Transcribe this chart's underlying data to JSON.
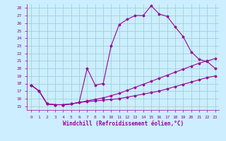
{
  "xlabel": "Windchill (Refroidissement éolien,°C)",
  "background_color": "#cceeff",
  "line_color": "#990099",
  "grid_color": "#99cccc",
  "xlim": [
    -0.5,
    23.5
  ],
  "ylim": [
    14.5,
    28.5
  ],
  "yticks": [
    15,
    16,
    17,
    18,
    19,
    20,
    21,
    22,
    23,
    24,
    25,
    26,
    27,
    28
  ],
  "xticks": [
    0,
    1,
    2,
    3,
    4,
    5,
    6,
    7,
    8,
    9,
    10,
    11,
    12,
    13,
    14,
    15,
    16,
    17,
    18,
    19,
    20,
    21,
    22,
    23
  ],
  "line1_x": [
    0,
    1,
    2,
    3,
    4,
    5,
    6,
    7,
    8,
    9,
    10,
    11,
    12,
    13,
    14,
    15,
    16,
    17,
    18,
    19,
    20,
    21,
    22,
    23
  ],
  "line1_y": [
    17.8,
    17.0,
    15.3,
    15.2,
    15.2,
    15.3,
    15.5,
    20.0,
    17.8,
    18.0,
    23.0,
    25.8,
    26.5,
    27.0,
    27.0,
    28.3,
    27.2,
    26.9,
    25.5,
    24.2,
    22.2,
    21.2,
    20.9,
    20.0
  ],
  "line2_x": [
    0,
    1,
    2,
    3,
    4,
    5,
    6,
    7,
    8,
    9,
    10,
    11,
    12,
    13,
    14,
    15,
    16,
    17,
    18,
    19,
    20,
    21,
    22,
    23
  ],
  "line2_y": [
    17.8,
    17.0,
    15.3,
    15.2,
    15.2,
    15.3,
    15.5,
    15.7,
    15.9,
    16.1,
    16.4,
    16.7,
    17.1,
    17.5,
    17.9,
    18.3,
    18.7,
    19.1,
    19.5,
    19.9,
    20.3,
    20.7,
    21.0,
    21.3
  ],
  "line3_x": [
    0,
    1,
    2,
    3,
    4,
    5,
    6,
    7,
    8,
    9,
    10,
    11,
    12,
    13,
    14,
    15,
    16,
    17,
    18,
    19,
    20,
    21,
    22,
    23
  ],
  "line3_y": [
    17.8,
    17.0,
    15.3,
    15.2,
    15.2,
    15.3,
    15.5,
    15.6,
    15.7,
    15.8,
    15.9,
    16.0,
    16.2,
    16.4,
    16.6,
    16.8,
    17.0,
    17.3,
    17.6,
    17.9,
    18.2,
    18.5,
    18.8,
    19.0
  ],
  "marker": "D",
  "marker_size": 1.5,
  "linewidth": 0.8,
  "tick_fontsize": 4.5,
  "label_fontsize": 5.5
}
